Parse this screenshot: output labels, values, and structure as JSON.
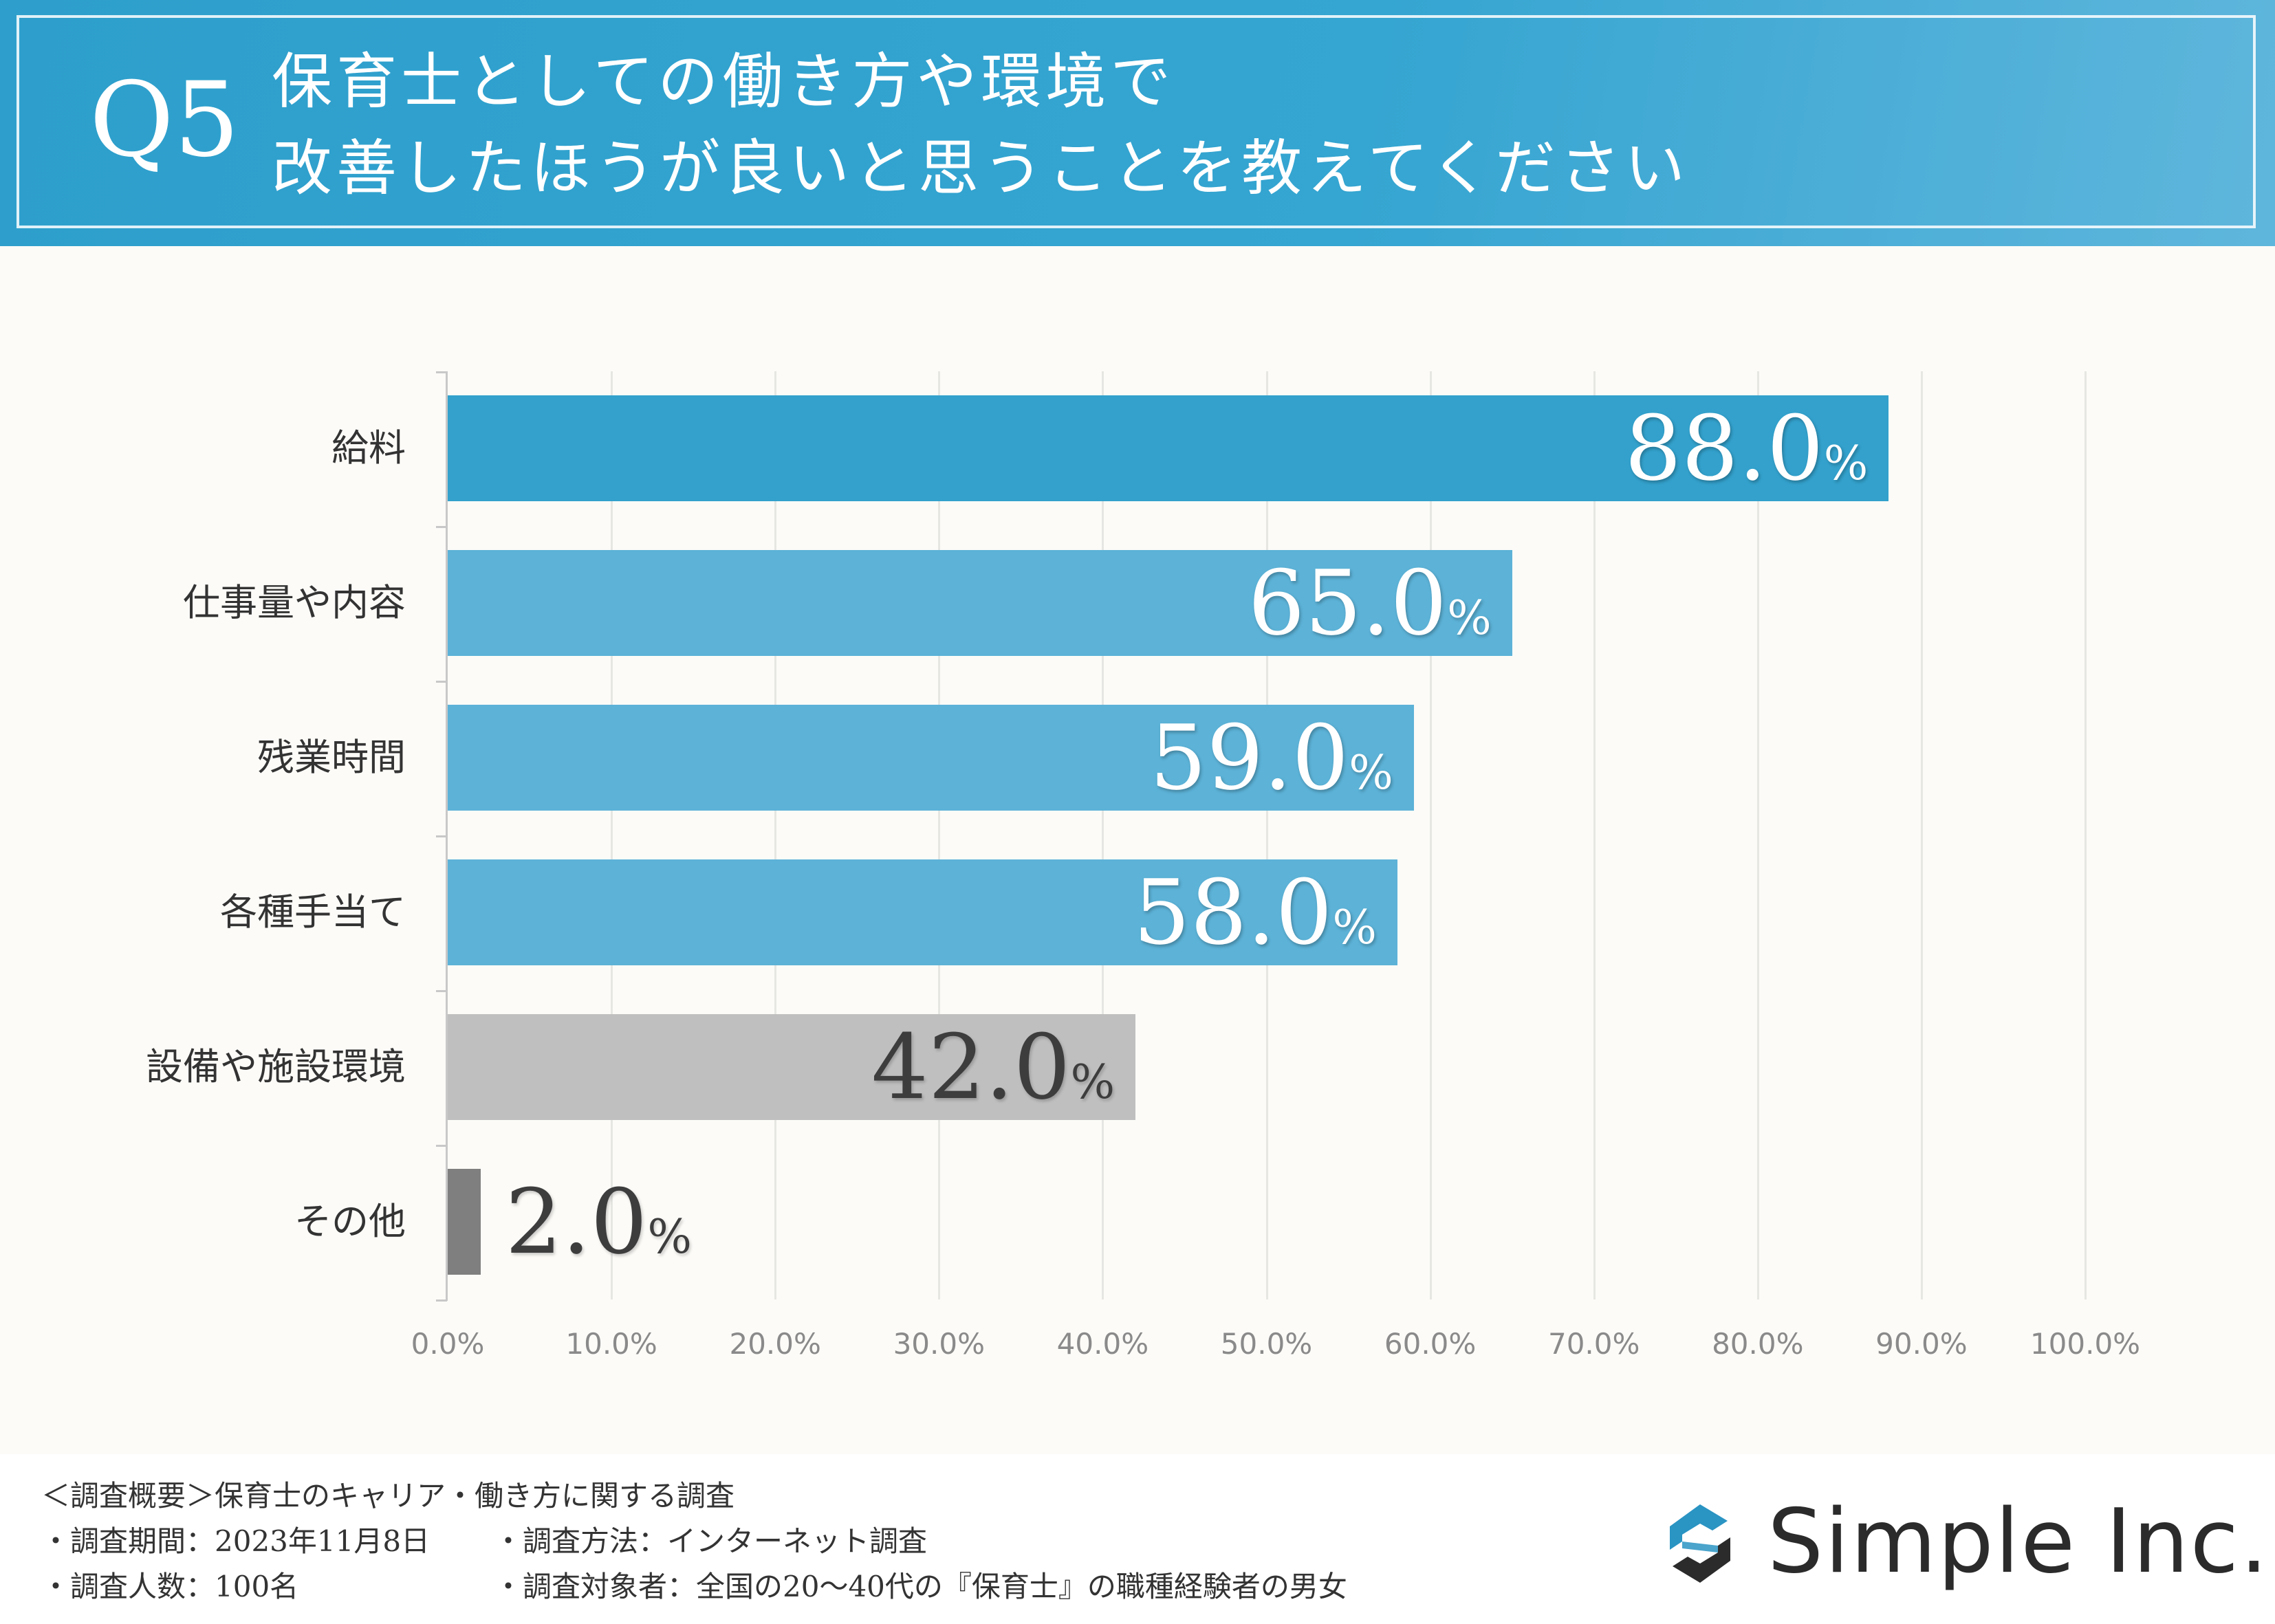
{
  "header": {
    "q_number": "Q5",
    "title_line1": "保育士としての働き方や環境で",
    "title_line2": "改善したほうが良いと思うことを教えてください"
  },
  "chart_data": {
    "type": "bar",
    "orientation": "horizontal",
    "title": "保育士としての働き方や環境で改善したほうが良いと思うことを教えてください",
    "categories": [
      "給料",
      "仕事量や内容",
      "残業時間",
      "各種手当て",
      "設備や施設環境",
      "その他"
    ],
    "values": [
      88.0,
      65.0,
      59.0,
      58.0,
      42.0,
      2.0
    ],
    "value_labels": [
      "88.0",
      "65.0",
      "59.0",
      "58.0",
      "42.0",
      "2.0"
    ],
    "value_suffix": "%",
    "xlim": [
      0,
      100
    ],
    "ticks": [
      "0.0%",
      "10.0%",
      "20.0%",
      "30.0%",
      "40.0%",
      "50.0%",
      "60.0%",
      "70.0%",
      "80.0%",
      "90.0%",
      "100.0%"
    ],
    "bar_colors": [
      "#33a1cc",
      "#5cb2d7",
      "#5cb2d7",
      "#5cb2d7",
      "#bfbfbf",
      "#7f7f7f"
    ],
    "label_styles": [
      "light",
      "light",
      "light",
      "light",
      "dark",
      "dark"
    ],
    "grid": true
  },
  "footer": {
    "survey_title": "＜調査概要＞保育士のキャリア・働き方に関する調査",
    "period": "・調査期間：2023年11月8日",
    "method": "・調査方法：インターネット調査",
    "count": "・調査人数：100名",
    "target": "・調査対象者：全国の20〜40代の『保育士』の職種経験者の男女",
    "logo_text": "Simple Inc."
  }
}
